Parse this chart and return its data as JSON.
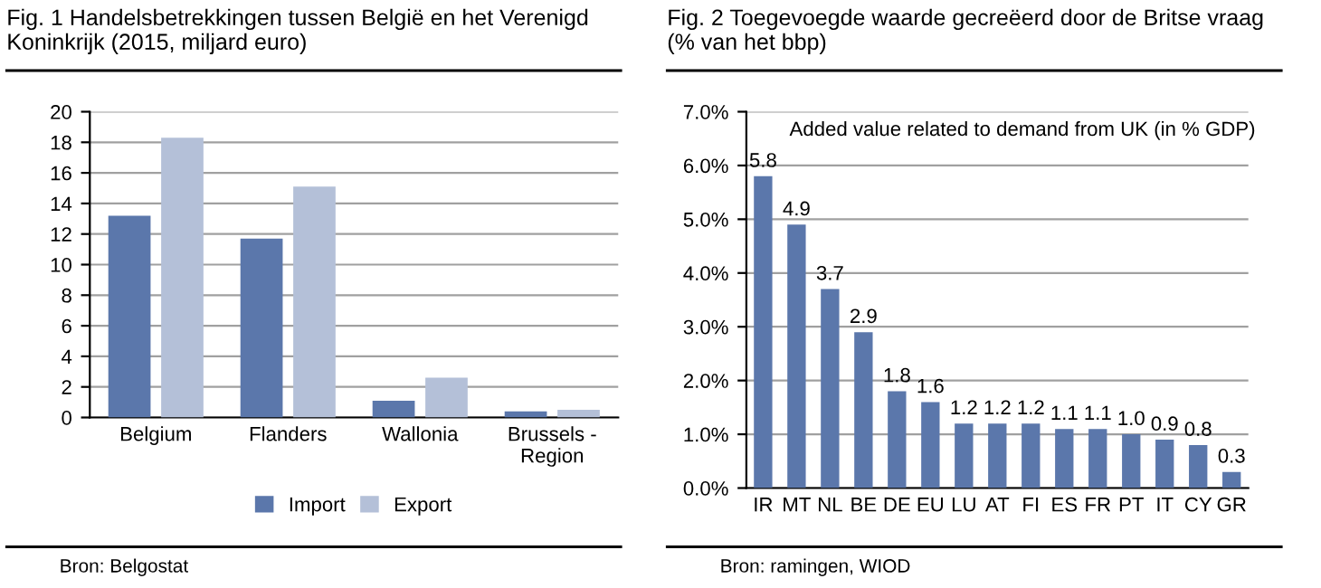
{
  "chart_data": [
    {
      "type": "bar",
      "title": "Fig. 1 Handelsbetrekkingen tussen België en het Verenigd\nKoninkrijk (2015, miljard euro)",
      "categories": [
        "Belgium",
        "Flanders",
        "Wallonia",
        "Brussels -\nRegion"
      ],
      "series": [
        {
          "name": "Import",
          "color": "#5b77ab",
          "values": [
            13.2,
            11.7,
            1.1,
            0.4
          ]
        },
        {
          "name": "Export",
          "color": "#b4c0d8",
          "values": [
            18.3,
            15.1,
            2.6,
            0.5
          ]
        }
      ],
      "ylim": [
        0,
        20
      ],
      "yticks": [
        0,
        2,
        4,
        6,
        8,
        10,
        12,
        14,
        16,
        18,
        20
      ],
      "grid": "y",
      "legend": "bottom",
      "annotations": [
        "Bron: Belgostat"
      ]
    },
    {
      "type": "bar",
      "title": "Fig. 2 Toegevoegde waarde gecreëerd door de Britse vraag\n(% van het bbp)",
      "categories": [
        "IR",
        "MT",
        "NL",
        "BE",
        "DE",
        "EU",
        "LU",
        "AT",
        "FI",
        "ES",
        "FR",
        "PT",
        "IT",
        "CY",
        "GR"
      ],
      "series": [
        {
          "color": "#5b77ab",
          "values": [
            5.8,
            4.9,
            3.7,
            2.9,
            1.8,
            1.6,
            1.2,
            1.2,
            1.2,
            1.1,
            1.1,
            1.0,
            0.9,
            0.8,
            0.3
          ],
          "value_labels": [
            "5.8",
            "4.9",
            "3.7",
            "2.9",
            "1.8",
            "1.6",
            "1.2",
            "1.2",
            "1.2",
            "1.1",
            "1.1",
            "1.0",
            "0.9",
            "0.8",
            "0.3"
          ]
        }
      ],
      "ylim": [
        0,
        7
      ],
      "yticks": [
        {
          "value": 0,
          "label": "0.0%"
        },
        {
          "value": 1,
          "label": "1.0%"
        },
        {
          "value": 2,
          "label": "2.0%"
        },
        {
          "value": 3,
          "label": "3.0%"
        },
        {
          "value": 4,
          "label": "4.0%"
        },
        {
          "value": 5,
          "label": "5.0%"
        },
        {
          "value": 6,
          "label": "6.0%"
        },
        {
          "value": 7,
          "label": "7.0%"
        }
      ],
      "grid": "y",
      "annotations": [
        "Added value related to demand from UK (in % GDP)",
        "Bron: ramingen, WIOD"
      ]
    }
  ]
}
